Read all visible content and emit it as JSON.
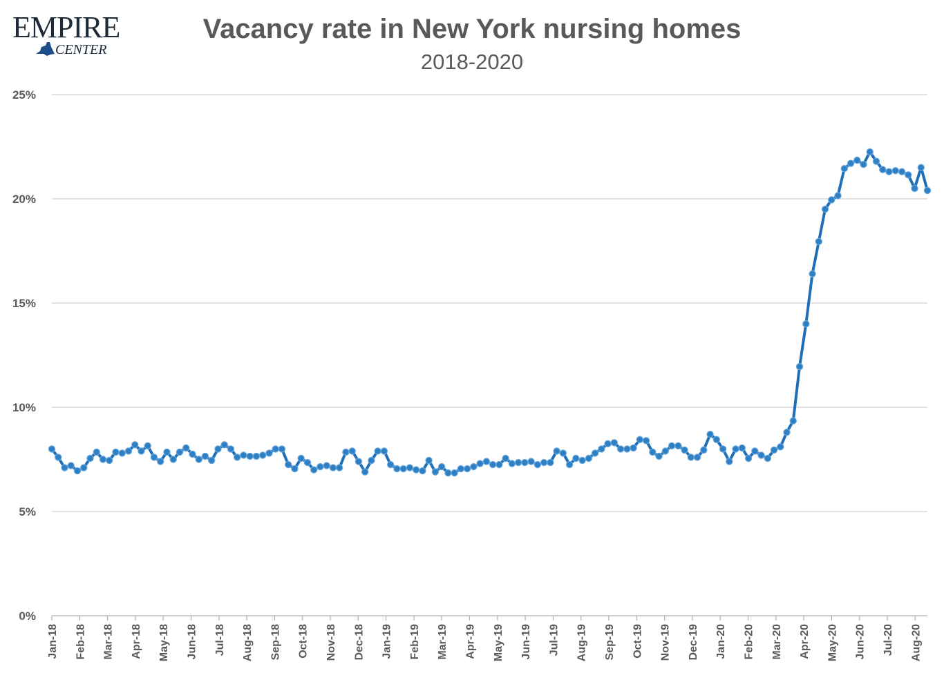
{
  "logo": {
    "word": "EMPIRE",
    "sub": "CENTER"
  },
  "chart_data": {
    "type": "line",
    "title": "Vacancy rate in New York nursing homes",
    "subtitle": "2018-2020",
    "xlabel": "",
    "ylabel": "",
    "ylim": [
      0,
      25
    ],
    "yticks": [
      "0%",
      "5%",
      "10%",
      "15%",
      "20%",
      "25%"
    ],
    "grid": true,
    "series_color": "#1f6fb8",
    "x_tick_labels": [
      "Jan-18",
      "Feb-18",
      "Mar-18",
      "Apr-18",
      "May-18",
      "Jun-18",
      "Jul-18",
      "Aug-18",
      "Sep-18",
      "Oct-18",
      "Nov-18",
      "Dec-18",
      "Jan-19",
      "Feb-19",
      "Mar-19",
      "Apr-19",
      "May-19",
      "Jun-19",
      "Jul-19",
      "Aug-19",
      "Sep-19",
      "Oct-19",
      "Nov-19",
      "Dec-19",
      "Jan-20",
      "Feb-20",
      "Mar-20",
      "Apr-20",
      "May-20",
      "Jun-20",
      "Jul-20",
      "Aug-20"
    ],
    "series": [
      {
        "values": [
          8.0,
          7.6,
          7.1,
          7.2,
          6.95,
          7.1,
          7.55,
          7.85,
          7.5,
          7.45,
          7.85,
          7.8,
          7.9,
          8.2,
          7.9,
          8.15,
          7.6,
          7.4,
          7.85,
          7.5,
          7.85,
          8.05,
          7.75,
          7.5,
          7.65,
          7.45,
          8.0,
          8.2,
          8.0,
          7.6,
          7.7,
          7.65,
          7.65,
          7.7,
          7.8,
          8.0,
          8.0,
          7.25,
          7.05,
          7.55,
          7.35,
          7.0,
          7.15,
          7.2,
          7.1,
          7.1,
          7.85,
          7.9,
          7.4,
          6.9,
          7.45,
          7.9,
          7.9,
          7.25,
          7.05,
          7.05,
          7.1,
          7.0,
          6.95,
          7.45,
          6.9,
          7.15,
          6.85,
          6.85,
          7.05,
          7.05,
          7.15,
          7.3,
          7.4,
          7.25,
          7.25,
          7.55,
          7.3,
          7.35,
          7.35,
          7.4,
          7.25,
          7.35,
          7.35,
          7.9,
          7.8,
          7.25,
          7.55,
          7.45,
          7.55,
          7.8,
          8.0,
          8.25,
          8.3,
          8.0,
          8.0,
          8.05,
          8.45,
          8.4,
          7.85,
          7.65,
          7.9,
          8.15,
          8.15,
          7.95,
          7.6,
          7.6,
          7.95,
          8.7,
          8.45,
          8.0,
          7.4,
          8.0,
          8.05,
          7.55,
          7.9,
          7.7,
          7.55,
          7.95,
          8.1,
          8.8,
          9.35,
          11.95,
          14.0,
          16.4,
          17.95,
          19.5,
          19.95,
          20.15,
          21.45,
          21.7,
          21.85,
          21.65,
          22.25,
          21.8,
          21.4,
          21.3,
          21.35,
          21.3,
          21.15,
          20.5,
          21.5,
          20.4
        ]
      }
    ]
  }
}
